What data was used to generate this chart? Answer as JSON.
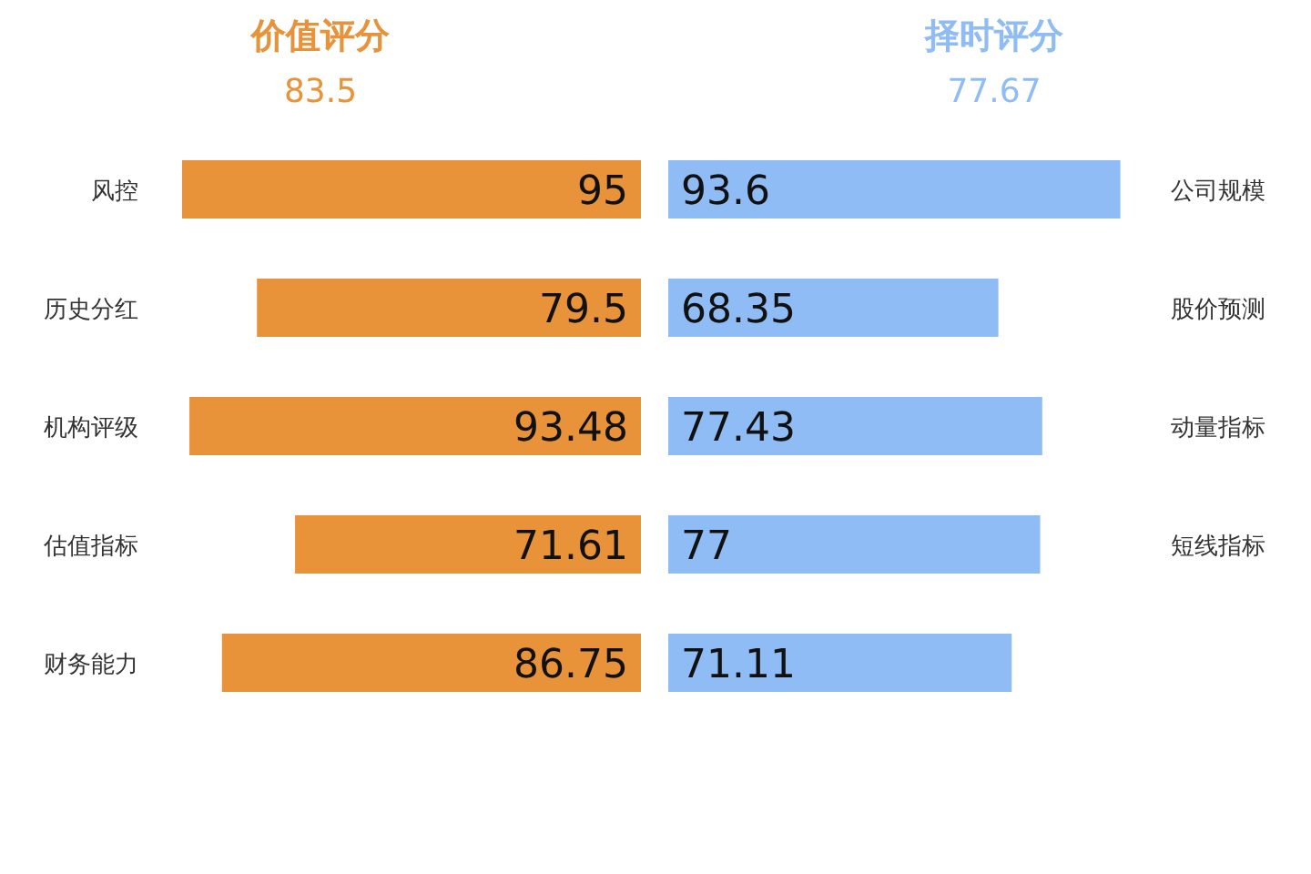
{
  "chart_data": [
    {
      "type": "bar",
      "orientation": "horizontal",
      "title": "价值评分",
      "subtitle": "83.5",
      "categories": [
        "风控",
        "历史分红",
        "机构评级",
        "估值指标",
        "财务能力"
      ],
      "series": [
        {
          "color": "#e8923a",
          "values": [
            95,
            79.5,
            93.48,
            71.61,
            86.75
          ]
        }
      ],
      "data_labels": true
    },
    {
      "type": "bar",
      "orientation": "horizontal",
      "title": "择时评分",
      "subtitle": "77.67",
      "categories": [
        "公司规模",
        "股价预测",
        "动量指标",
        "短线指标",
        null
      ],
      "series": [
        {
          "color": "#8fbcf5",
          "values": [
            93.6,
            68.35,
            77.43,
            77,
            71.11
          ]
        }
      ],
      "data_labels": true
    }
  ]
}
